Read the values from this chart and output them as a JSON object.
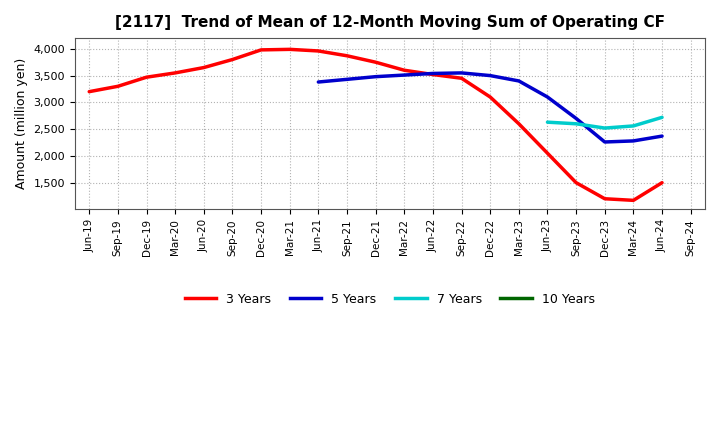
{
  "title": "[2117]  Trend of Mean of 12-Month Moving Sum of Operating CF",
  "ylabel": "Amount (million yen)",
  "background_color": "#ffffff",
  "plot_bg_color": "#ffffff",
  "grid_color": "#aaaaaa",
  "ylim": [
    1000,
    4200
  ],
  "yticks": [
    1500,
    2000,
    2500,
    3000,
    3500,
    4000
  ],
  "xtick_labels": [
    "Jun-19",
    "Sep-19",
    "Dec-19",
    "Mar-20",
    "Jun-20",
    "Sep-20",
    "Dec-20",
    "Mar-21",
    "Jun-21",
    "Sep-21",
    "Dec-21",
    "Mar-22",
    "Jun-22",
    "Sep-22",
    "Dec-22",
    "Mar-23",
    "Jun-23",
    "Sep-23",
    "Dec-23",
    "Mar-24",
    "Jun-24",
    "Sep-24"
  ],
  "series": {
    "3 Years": {
      "color": "#ff0000",
      "dates": [
        "Jun-19",
        "Sep-19",
        "Dec-19",
        "Mar-20",
        "Jun-20",
        "Sep-20",
        "Dec-20",
        "Mar-21",
        "Jun-21",
        "Sep-21",
        "Dec-21",
        "Mar-22",
        "Jun-22",
        "Sep-22",
        "Dec-22",
        "Mar-23",
        "Jun-23",
        "Sep-23",
        "Dec-23",
        "Mar-24",
        "Jun-24"
      ],
      "values": [
        3200,
        3300,
        3470,
        3550,
        3650,
        3800,
        3980,
        3990,
        3960,
        3870,
        3750,
        3600,
        3520,
        3450,
        3100,
        2600,
        2050,
        1500,
        1200,
        1170,
        1500
      ]
    },
    "5 Years": {
      "color": "#0000cc",
      "dates": [
        "Jun-21",
        "Sep-21",
        "Dec-21",
        "Mar-22",
        "Jun-22",
        "Sep-22",
        "Dec-22",
        "Mar-23",
        "Jun-23",
        "Sep-23",
        "Dec-23",
        "Mar-24",
        "Jun-24"
      ],
      "values": [
        3380,
        3430,
        3480,
        3510,
        3540,
        3550,
        3500,
        3400,
        3100,
        2700,
        2260,
        2280,
        2370
      ]
    },
    "7 Years": {
      "color": "#00cccc",
      "dates": [
        "Jun-23",
        "Sep-23",
        "Dec-23",
        "Mar-24",
        "Jun-24"
      ],
      "values": [
        2630,
        2600,
        2520,
        2560,
        2720
      ]
    },
    "10 Years": {
      "color": "#006600",
      "dates": [],
      "values": []
    }
  },
  "legend_labels": [
    "3 Years",
    "5 Years",
    "7 Years",
    "10 Years"
  ],
  "legend_colors": [
    "#ff0000",
    "#0000cc",
    "#00cccc",
    "#006600"
  ]
}
